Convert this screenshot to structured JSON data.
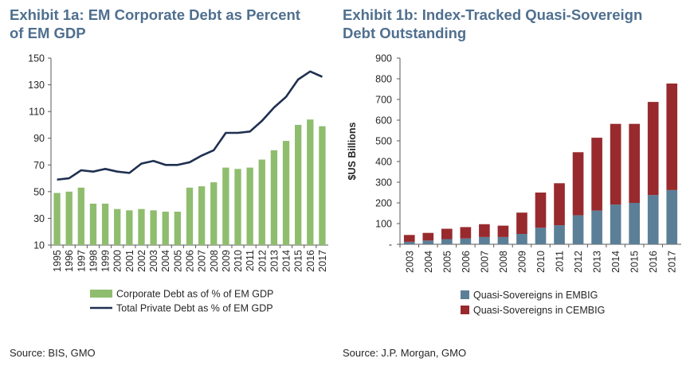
{
  "exhibit_a": {
    "title": "Exhibit 1a: EM Corporate Debt as Percent of EM GDP",
    "source": "Source: BIS, GMO"
  },
  "exhibit_b": {
    "title": "Exhibit 1b: Index-Tracked Quasi-Sovereign Debt Outstanding",
    "source": "Source: J.P. Morgan, GMO"
  },
  "chart_data": [
    {
      "type": "bar",
      "title": "Exhibit 1a: EM Corporate Debt as Percent of EM GDP",
      "xlabel": "",
      "ylabel": "",
      "ylim": [
        10,
        150
      ],
      "yticks": [
        10,
        30,
        50,
        70,
        90,
        110,
        130,
        150
      ],
      "grid": false,
      "legend": "bottom",
      "categories": [
        "1995",
        "1996",
        "1997",
        "1998",
        "1999",
        "2000",
        "2001",
        "2002",
        "2003",
        "2004",
        "2005",
        "2006",
        "2007",
        "2008",
        "2009",
        "2010",
        "2011",
        "2012",
        "2013",
        "2014",
        "2015",
        "2016",
        "2017"
      ],
      "series": [
        {
          "name": "Corporate Debt as of % of EM GDP",
          "type": "bar",
          "color": "#8fbd6e",
          "values": [
            49,
            50,
            53,
            41,
            41,
            37,
            36,
            37,
            36,
            35,
            35,
            53,
            54,
            57,
            68,
            67,
            68,
            74,
            81,
            88,
            100,
            104,
            99
          ]
        },
        {
          "name": "Total Private Debt as % of EM GDP",
          "type": "line",
          "color": "#1f3050",
          "values": [
            59,
            60,
            66,
            65,
            67,
            65,
            64,
            71,
            73,
            70,
            70,
            72,
            77,
            81,
            94,
            94,
            95,
            103,
            113,
            121,
            134,
            140,
            136
          ]
        }
      ]
    },
    {
      "type": "bar",
      "stacked": true,
      "title": "Exhibit 1b: Index-Tracked Quasi-Sovereign Debt Outstanding",
      "xlabel": "",
      "ylabel": "$US Billions",
      "ylim": [
        0,
        900
      ],
      "yticks": [
        0,
        100,
        200,
        300,
        400,
        500,
        600,
        700,
        800,
        900
      ],
      "zero_tick_label": "-",
      "grid": false,
      "legend": "bottom",
      "categories": [
        "2003",
        "2004",
        "2005",
        "2006",
        "2007",
        "2008",
        "2009",
        "2010",
        "2011",
        "2012",
        "2013",
        "2014",
        "2015",
        "2016",
        "2017"
      ],
      "series": [
        {
          "name": "Quasi-Sovereigns in EMBIG",
          "color": "#5b7f96",
          "values": [
            12,
            18,
            25,
            28,
            35,
            35,
            50,
            80,
            92,
            140,
            163,
            192,
            200,
            238,
            262
          ]
        },
        {
          "name": "Quasi-Sovereigns in CEMBIG",
          "color": "#982a2e",
          "values": [
            33,
            37,
            50,
            55,
            62,
            55,
            103,
            170,
            203,
            305,
            352,
            390,
            382,
            450,
            515
          ]
        }
      ]
    }
  ]
}
